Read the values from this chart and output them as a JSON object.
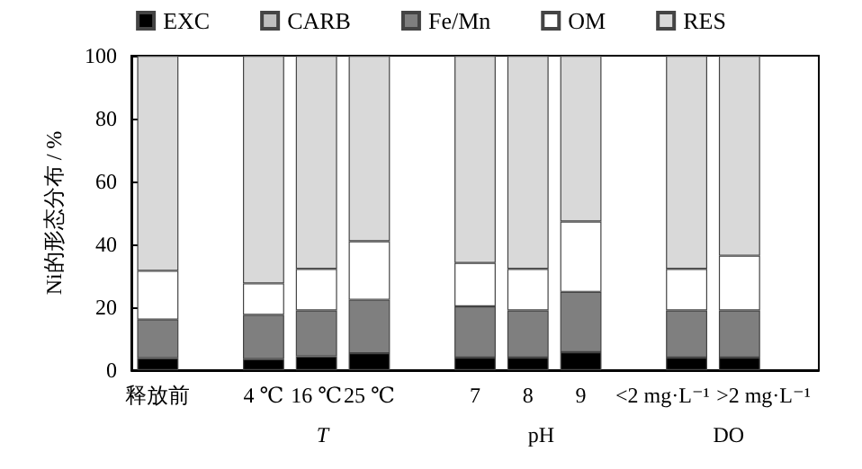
{
  "chart_data": {
    "type": "bar",
    "stacked": true,
    "ylabel": "Ni的形态分布 / %",
    "categories": [
      "释放前",
      null,
      "4 ℃",
      "16 ℃",
      "25 ℃",
      null,
      "7",
      "8",
      "9",
      null,
      "<2 mg·L⁻¹",
      ">2 mg·L⁻¹",
      null
    ],
    "series": [
      {
        "name": "EXC",
        "color": "#000000",
        "values": [
          3.8,
          null,
          3.5,
          4.4,
          5.4,
          null,
          4,
          4,
          5.7,
          null,
          4,
          4,
          null
        ]
      },
      {
        "name": "CARB",
        "color": "#bfbfbf",
        "values": [
          0,
          null,
          0,
          0,
          0,
          null,
          0,
          0,
          0,
          null,
          0,
          0,
          null
        ]
      },
      {
        "name": "Fe/Mn",
        "color": "#7f7f7f",
        "values": [
          12.3,
          null,
          14.1,
          14.6,
          17,
          null,
          16.3,
          15,
          19.2,
          null,
          15,
          15,
          null
        ]
      },
      {
        "name": "OM",
        "color": "#ffffff",
        "values": [
          15.5,
          null,
          10,
          13.2,
          18.6,
          null,
          13.8,
          13.2,
          22.4,
          null,
          13.2,
          17.4,
          null
        ]
      },
      {
        "name": "RES",
        "color": "#d9d9d9",
        "values": [
          68.4,
          null,
          72.4,
          67.8,
          59,
          null,
          65.9,
          67.8,
          52.7,
          null,
          67.8,
          63.6,
          null
        ]
      }
    ],
    "ylim": [
      0,
      100
    ],
    "yticks": [
      0,
      20,
      40,
      60,
      80,
      100
    ],
    "grid": false,
    "legend": "top",
    "annotations": [
      "T",
      "pH",
      "DO"
    ]
  }
}
